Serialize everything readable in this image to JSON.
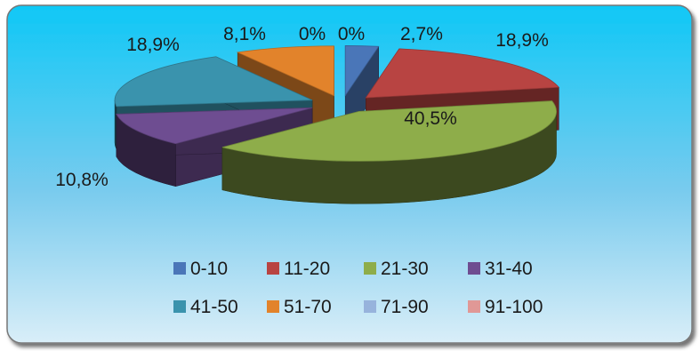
{
  "chart_data": {
    "type": "pie",
    "title": "",
    "categories": [
      "0-10",
      "11-20",
      "21-30",
      "31-40",
      "41-50",
      "51-70",
      "71-90",
      "91-100"
    ],
    "values": [
      2.7,
      18.9,
      40.5,
      10.8,
      18.9,
      8.1,
      0,
      0
    ],
    "data_labels": [
      "2,7%",
      "18,9%",
      "40,5%",
      "10,8%",
      "18,9%",
      "8,1%",
      "0%",
      "0%"
    ],
    "colors": [
      "#4a76b8",
      "#b84442",
      "#8ead4a",
      "#6e4d91",
      "#3a93ad",
      "#e2832b",
      "#97b3dc",
      "#e09896"
    ],
    "exploded": true,
    "three_d": true,
    "legend_position": "bottom",
    "background": "sky-gradient"
  }
}
